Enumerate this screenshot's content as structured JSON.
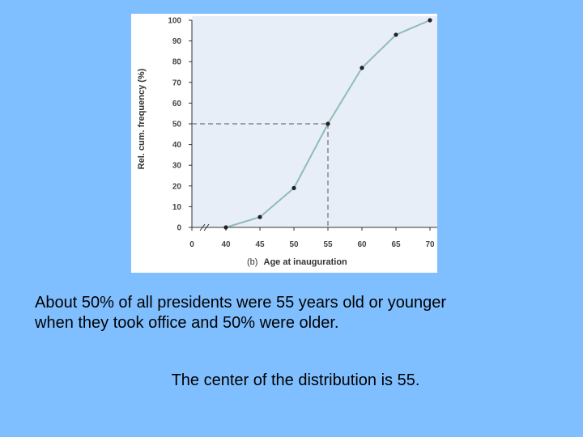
{
  "chart_data": {
    "type": "line",
    "panel_label": "(b)",
    "xlabel": "Age at inauguration",
    "ylabel": "Rel. cum. frequency (%)",
    "x_ticks": [
      0,
      40,
      45,
      50,
      55,
      60,
      65,
      70
    ],
    "y_ticks": [
      0,
      10,
      20,
      30,
      40,
      50,
      60,
      70,
      80,
      90,
      100
    ],
    "xlim": [
      0,
      70
    ],
    "ylim": [
      0,
      100
    ],
    "x_axis_break": true,
    "grid": false,
    "series": [
      {
        "x": [
          40,
          45,
          50,
          55,
          60,
          65,
          70
        ],
        "y": [
          0,
          5,
          19,
          50,
          77,
          93,
          100
        ]
      }
    ],
    "reference_lines": [
      {
        "from": [
          0,
          50
        ],
        "to": [
          55,
          50
        ]
      },
      {
        "from": [
          55,
          50
        ],
        "to": [
          55,
          0
        ]
      }
    ],
    "colors": {
      "line": "#8fbcb6",
      "marker": "#222222",
      "plot_background": "#e7eef8",
      "reference": "#555555"
    }
  },
  "caption": {
    "line1": "About 50% of all presidents were 55 years old or younger",
    "line2": "when they took office and 50% were older.",
    "center": "The center of the distribution is 55."
  }
}
